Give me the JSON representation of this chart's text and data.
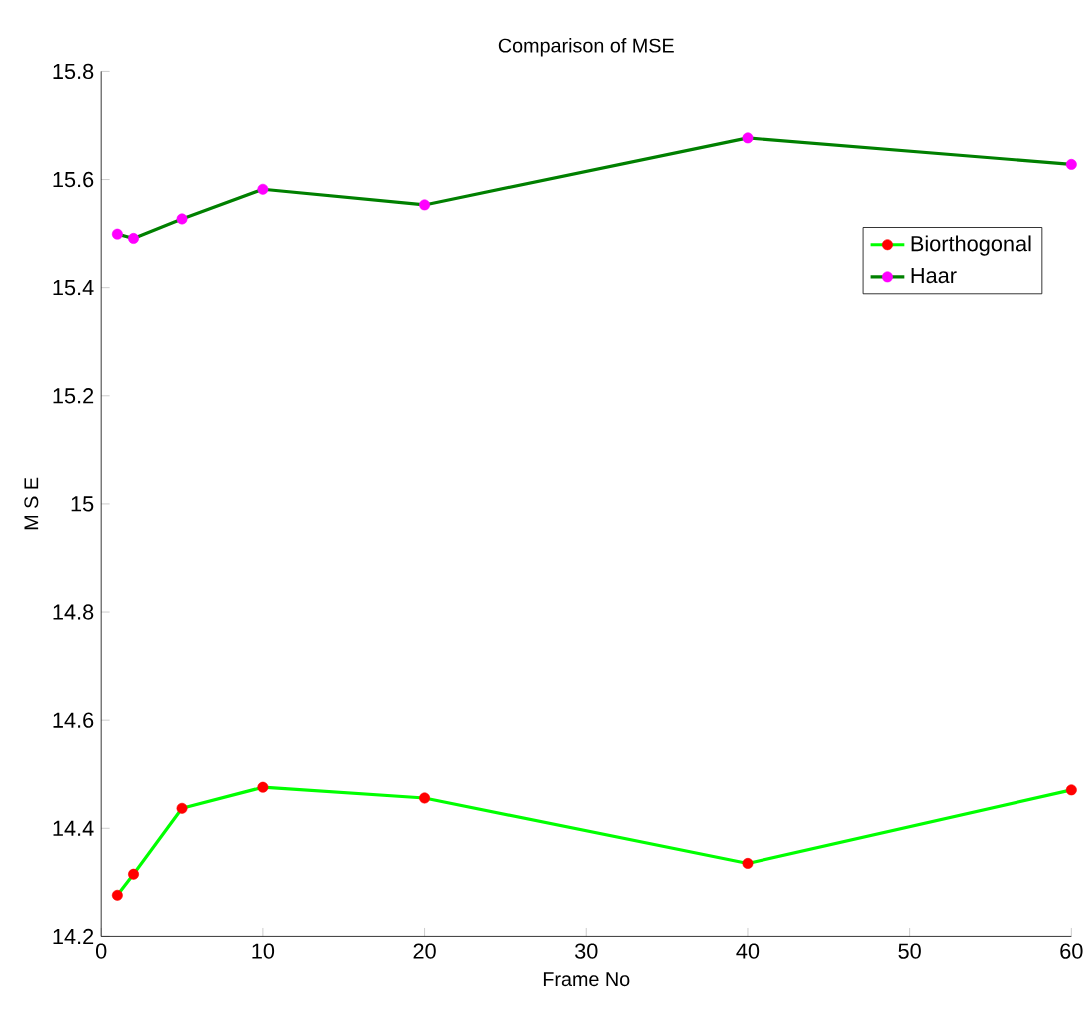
{
  "chart_data": {
    "type": "line",
    "title": "Comparison of MSE",
    "xlabel": "Frame No",
    "ylabel": "M S E",
    "x": [
      1,
      2,
      5,
      10,
      20,
      40,
      60
    ],
    "series": [
      {
        "name": "Biorthogonal",
        "color": "#00ff00",
        "colors": [
          "#ff0000",
          "#ff0000",
          "#ff0000",
          "#ff0000",
          "#ff0000",
          "#ff0000",
          "#ff0000"
        ],
        "values": [
          14.276,
          14.315,
          14.437,
          14.476,
          14.456,
          14.335,
          14.471
        ]
      },
      {
        "name": "Haar",
        "color": "#008000",
        "colors": [
          "#ff00ff",
          "#ff00ff",
          "#ff00ff",
          "#ff00ff",
          "#ff00ff",
          "#ff00ff",
          "#ff00ff"
        ],
        "values": [
          15.499,
          15.491,
          15.527,
          15.582,
          15.553,
          15.677,
          15.628
        ]
      }
    ],
    "xlim": [
      0,
      60
    ],
    "ylim": [
      14.2,
      15.8
    ],
    "xticks": [
      0,
      10,
      20,
      30,
      40,
      50,
      60
    ],
    "yticks": [
      14.2,
      14.4,
      14.6,
      14.8,
      15,
      15.2,
      15.4,
      15.6,
      15.8
    ],
    "grid": false,
    "legend": "top right",
    "marker": "circle",
    "line_style": "solid"
  }
}
